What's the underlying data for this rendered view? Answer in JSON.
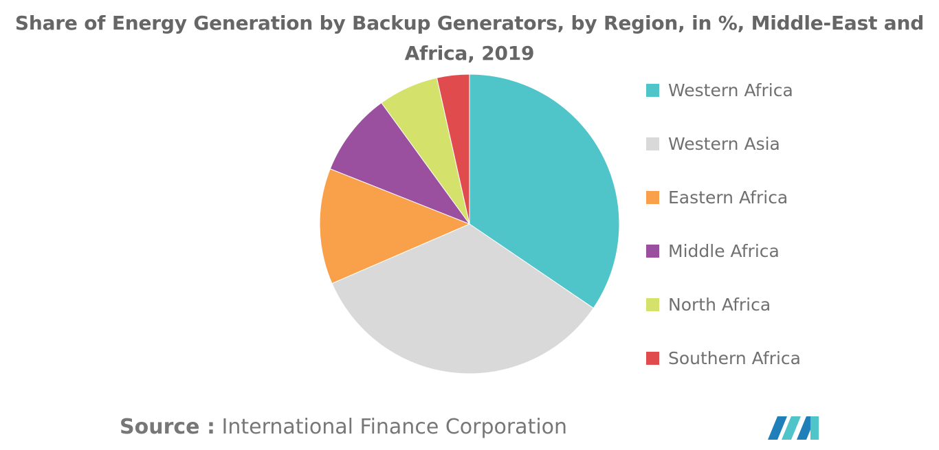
{
  "chart_data": {
    "type": "pie",
    "title_lines": [
      "Share of Energy Generation by Backup Generators, by Region, in %, Middle-East and",
      "Africa, 2019"
    ],
    "categories": [
      "Western Africa",
      "Western Asia",
      "Eastern Africa",
      "Middle Africa",
      "North Africa",
      "Southern Africa"
    ],
    "values": [
      34.5,
      34.0,
      12.5,
      9.0,
      6.5,
      3.5
    ],
    "colors": [
      "#4fc4c9",
      "#d9d9d9",
      "#f9a04b",
      "#9b4f9f",
      "#d4e26b",
      "#e04b4d"
    ],
    "legend_position": "right"
  },
  "source": {
    "label": "Source :",
    "text": "International Finance Corporation"
  },
  "logo": {
    "icon": "mordor-intelligence-logo-icon",
    "colors": [
      "#1f7fb8",
      "#4fc4c9"
    ]
  }
}
